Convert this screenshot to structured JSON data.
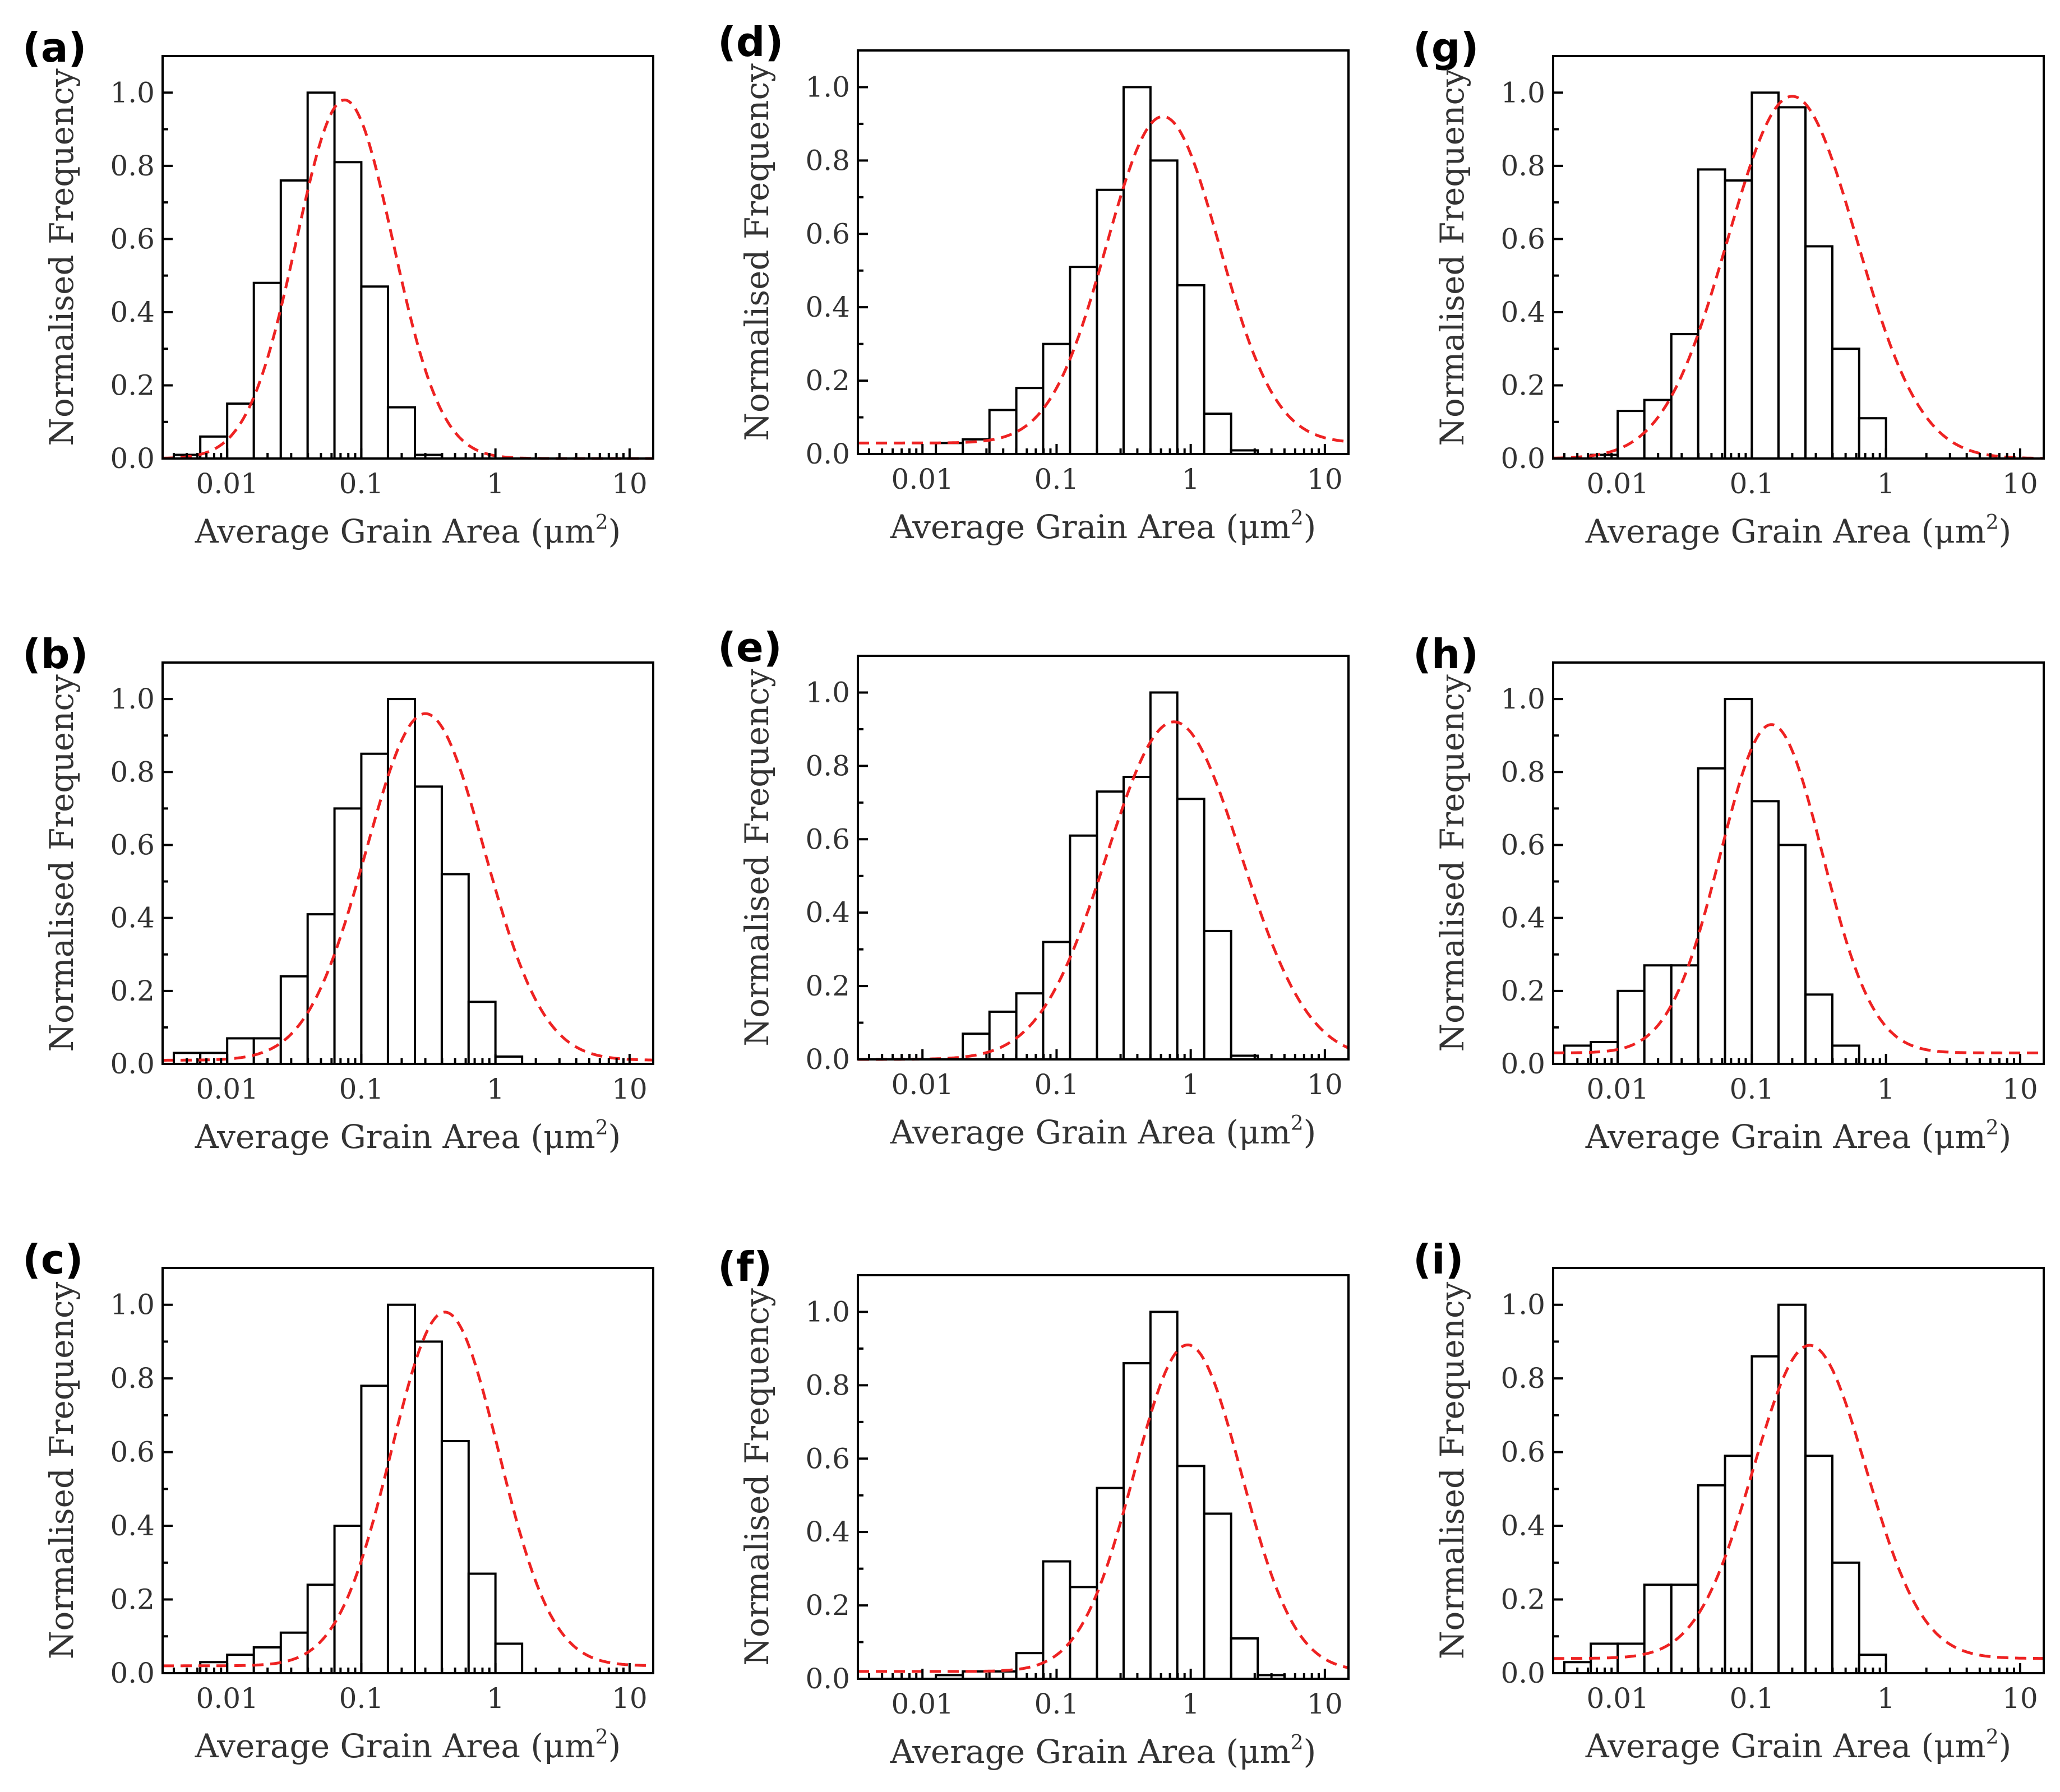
{
  "chart_data": [
    {
      "id": "a",
      "panel_label": "(a)",
      "type": "bar",
      "xlabel": "Average Grain Area (μm",
      "xlabel_sup": "2",
      "xlabel_tail": ")",
      "ylabel": "Normalised Frequency",
      "xscale": "log",
      "xlim": [
        0.0033,
        15
      ],
      "ylim": [
        0,
        1.1
      ],
      "xticks": [
        "0.01",
        "0.1",
        "1",
        "10"
      ],
      "yticks": [
        "0.0",
        "0.2",
        "0.4",
        "0.6",
        "0.8",
        "1.0"
      ],
      "bin_edges": [
        0.004,
        0.0063,
        0.01,
        0.0158,
        0.0251,
        0.0398,
        0.0631,
        0.1,
        0.158,
        0.251,
        0.398,
        0.631
      ],
      "values": [
        0.01,
        0.06,
        0.15,
        0.48,
        0.76,
        1.0,
        0.81,
        0.47,
        0.14,
        0.01,
        0.0
      ],
      "fit": {
        "center": 0.075,
        "amplitude": 0.98,
        "sigma_decades": 0.36,
        "offset": 0.0
      }
    },
    {
      "id": "b",
      "panel_label": "(b)",
      "type": "bar",
      "xlabel": "Average Grain Area (μm",
      "xlabel_sup": "2",
      "xlabel_tail": ")",
      "ylabel": "Normalised Frequency",
      "xscale": "log",
      "xlim": [
        0.0033,
        15
      ],
      "ylim": [
        0,
        1.1
      ],
      "xticks": [
        "0.01",
        "0.1",
        "1",
        "10"
      ],
      "yticks": [
        "0.0",
        "0.2",
        "0.4",
        "0.6",
        "0.8",
        "1.0"
      ],
      "bin_edges": [
        0.004,
        0.0063,
        0.01,
        0.0158,
        0.0251,
        0.0398,
        0.0631,
        0.1,
        0.158,
        0.251,
        0.398,
        0.631,
        1.0,
        1.58,
        2.51,
        3.98
      ],
      "values": [
        0.03,
        0.03,
        0.07,
        0.07,
        0.24,
        0.41,
        0.7,
        0.85,
        1.0,
        0.76,
        0.52,
        0.17,
        0.02,
        0.0,
        0.0
      ],
      "fit": {
        "center": 0.3,
        "amplitude": 0.96,
        "sigma_decades": 0.44,
        "offset": 0.01
      }
    },
    {
      "id": "c",
      "panel_label": "(c)",
      "type": "bar",
      "xlabel": "Average Grain Area (μm",
      "xlabel_sup": "2",
      "xlabel_tail": ")",
      "ylabel": "Normalised Frequency",
      "xscale": "log",
      "xlim": [
        0.0033,
        15
      ],
      "ylim": [
        0,
        1.1
      ],
      "xticks": [
        "0.01",
        "0.1",
        "1",
        "10"
      ],
      "yticks": [
        "0.0",
        "0.2",
        "0.4",
        "0.6",
        "0.8",
        "1.0"
      ],
      "bin_edges": [
        0.0063,
        0.01,
        0.0158,
        0.0251,
        0.0398,
        0.0631,
        0.1,
        0.158,
        0.251,
        0.398,
        0.631,
        1.0,
        1.58,
        2.51,
        3.98
      ],
      "values": [
        0.03,
        0.05,
        0.07,
        0.11,
        0.24,
        0.4,
        0.78,
        1.0,
        0.9,
        0.63,
        0.27,
        0.08,
        0.0,
        0.0
      ],
      "fit": {
        "center": 0.42,
        "amplitude": 0.98,
        "sigma_decades": 0.4,
        "offset": 0.02
      }
    },
    {
      "id": "d",
      "panel_label": "(d)",
      "type": "bar",
      "xlabel": "Average Grain Area (μm",
      "xlabel_sup": "2",
      "xlabel_tail": ")",
      "ylabel": "Normalised Frequency",
      "xscale": "log",
      "xlim": [
        0.0033,
        15
      ],
      "ylim": [
        0,
        1.1
      ],
      "xticks": [
        "0.01",
        "0.1",
        "1",
        "10"
      ],
      "yticks": [
        "0.0",
        "0.2",
        "0.4",
        "0.6",
        "0.8",
        "1.0"
      ],
      "bin_edges": [
        0.0126,
        0.02,
        0.0316,
        0.0501,
        0.0794,
        0.126,
        0.2,
        0.316,
        0.501,
        0.794,
        1.26,
        2.0,
        3.16,
        5.01,
        7.94
      ],
      "values": [
        0.03,
        0.04,
        0.12,
        0.18,
        0.3,
        0.51,
        0.72,
        1.0,
        0.8,
        0.46,
        0.11,
        0.01,
        0.0,
        0.0
      ],
      "fit": {
        "center": 0.62,
        "amplitude": 0.92,
        "sigma_decades": 0.42,
        "offset": 0.03
      }
    },
    {
      "id": "e",
      "panel_label": "(e)",
      "type": "bar",
      "xlabel": "Average Grain Area (μm",
      "xlabel_sup": "2",
      "xlabel_tail": ")",
      "ylabel": "Normalised Frequency",
      "xscale": "log",
      "xlim": [
        0.0033,
        15
      ],
      "ylim": [
        0,
        1.1
      ],
      "xticks": [
        "0.01",
        "0.1",
        "1",
        "10"
      ],
      "yticks": [
        "0.0",
        "0.2",
        "0.4",
        "0.6",
        "0.8",
        "1.0"
      ],
      "bin_edges": [
        0.02,
        0.0316,
        0.0501,
        0.0794,
        0.126,
        0.2,
        0.316,
        0.501,
        0.794,
        1.26,
        2.0,
        3.16,
        5.01,
        7.94
      ],
      "values": [
        0.07,
        0.13,
        0.18,
        0.32,
        0.61,
        0.73,
        0.77,
        1.0,
        0.71,
        0.35,
        0.01,
        0.0,
        0.0
      ],
      "fit": {
        "center": 0.75,
        "amplitude": 0.92,
        "sigma_decades": 0.5,
        "offset": 0.0
      }
    },
    {
      "id": "f",
      "panel_label": "(f)",
      "type": "bar",
      "xlabel": "Average Grain Area (μm",
      "xlabel_sup": "2",
      "xlabel_tail": ")",
      "ylabel": "Normalised Frequency",
      "xscale": "log",
      "xlim": [
        0.0033,
        15
      ],
      "ylim": [
        0,
        1.1
      ],
      "xticks": [
        "0.01",
        "0.1",
        "1",
        "10"
      ],
      "yticks": [
        "0.0",
        "0.2",
        "0.4",
        "0.6",
        "0.8",
        "1.0"
      ],
      "bin_edges": [
        0.0126,
        0.02,
        0.0316,
        0.0501,
        0.0794,
        0.126,
        0.2,
        0.316,
        0.501,
        0.794,
        1.26,
        2.0,
        3.16,
        5.01,
        7.94
      ],
      "values": [
        0.01,
        0.02,
        0.02,
        0.07,
        0.32,
        0.25,
        0.52,
        0.86,
        1.0,
        0.58,
        0.45,
        0.11,
        0.01,
        0.0
      ],
      "fit": {
        "center": 0.95,
        "amplitude": 0.91,
        "sigma_decades": 0.4,
        "offset": 0.02
      }
    },
    {
      "id": "g",
      "panel_label": "(g)",
      "type": "bar",
      "xlabel": "Average Grain Area (μm",
      "xlabel_sup": "2",
      "xlabel_tail": ")",
      "ylabel": "Normalised Frequency",
      "xscale": "log",
      "xlim": [
        0.0033,
        15
      ],
      "ylim": [
        0,
        1.1
      ],
      "xticks": [
        "0.01",
        "0.1",
        "1",
        "10"
      ],
      "yticks": [
        "0.0",
        "0.2",
        "0.4",
        "0.6",
        "0.8",
        "1.0"
      ],
      "bin_edges": [
        0.0063,
        0.01,
        0.0158,
        0.0251,
        0.0398,
        0.0631,
        0.1,
        0.158,
        0.251,
        0.398,
        0.631,
        1.0,
        1.58,
        2.51
      ],
      "values": [
        0.01,
        0.13,
        0.16,
        0.34,
        0.79,
        0.76,
        1.0,
        0.96,
        0.58,
        0.3,
        0.11,
        0.0,
        0.0
      ],
      "fit": {
        "center": 0.2,
        "amplitude": 0.99,
        "sigma_decades": 0.48,
        "offset": 0.0
      }
    },
    {
      "id": "h",
      "panel_label": "(h)",
      "type": "bar",
      "xlabel": "Average Grain Area (μm",
      "xlabel_sup": "2",
      "xlabel_tail": ")",
      "ylabel": "Normalised Frequency",
      "xscale": "log",
      "xlim": [
        0.0033,
        15
      ],
      "ylim": [
        0,
        1.1
      ],
      "xticks": [
        "0.01",
        "0.1",
        "1",
        "10"
      ],
      "yticks": [
        "0.0",
        "0.2",
        "0.4",
        "0.6",
        "0.8",
        "1.0"
      ],
      "bin_edges": [
        0.004,
        0.0063,
        0.01,
        0.0158,
        0.0251,
        0.0398,
        0.0631,
        0.1,
        0.158,
        0.251,
        0.398,
        0.631,
        1.0,
        1.58
      ],
      "values": [
        0.05,
        0.06,
        0.2,
        0.27,
        0.27,
        0.81,
        1.0,
        0.72,
        0.6,
        0.19,
        0.05,
        0.0,
        0.0
      ],
      "fit": {
        "center": 0.14,
        "amplitude": 0.93,
        "sigma_decades": 0.38,
        "offset": 0.03
      }
    },
    {
      "id": "i",
      "panel_label": "(i)",
      "type": "bar",
      "xlabel": "Average Grain Area (μm",
      "xlabel_sup": "2",
      "xlabel_tail": ")",
      "ylabel": "Normalised Frequency",
      "xscale": "log",
      "xlim": [
        0.0033,
        15
      ],
      "ylim": [
        0,
        1.1
      ],
      "xticks": [
        "0.01",
        "0.1",
        "1",
        "10"
      ],
      "yticks": [
        "0.0",
        "0.2",
        "0.4",
        "0.6",
        "0.8",
        "1.0"
      ],
      "bin_edges": [
        0.004,
        0.0063,
        0.01,
        0.0158,
        0.0251,
        0.0398,
        0.0631,
        0.1,
        0.158,
        0.251,
        0.398,
        0.631,
        1.0,
        1.58,
        2.51
      ],
      "values": [
        0.03,
        0.08,
        0.08,
        0.24,
        0.24,
        0.51,
        0.59,
        0.86,
        1.0,
        0.59,
        0.3,
        0.05,
        0.0,
        0.0
      ],
      "fit": {
        "center": 0.27,
        "amplitude": 0.89,
        "sigma_decades": 0.42,
        "offset": 0.04
      }
    }
  ],
  "colors": {
    "bar_fill": "#ffffff",
    "bar_edge": "#000000",
    "fit_line": "#ee2222"
  }
}
